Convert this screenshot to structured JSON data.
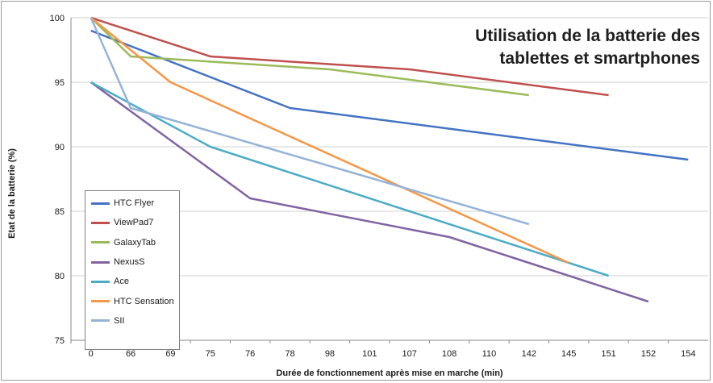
{
  "chart_data": {
    "type": "line",
    "title_lines": [
      "Utilisation de la batterie des",
      "tablettes et smartphones"
    ],
    "xlabel": "Durée de fonctionnement après mise en marche (min)",
    "ylabel": "Etat de la batterie (%)",
    "categories": [
      "0",
      "66",
      "69",
      "75",
      "76",
      "78",
      "98",
      "101",
      "107",
      "108",
      "110",
      "142",
      "145",
      "151",
      "152",
      "154"
    ],
    "ylim": [
      75,
      100
    ],
    "yticks": [
      "75",
      "80",
      "85",
      "90",
      "95",
      "100"
    ],
    "grid": "horizontal",
    "legend_position": "left-bottom",
    "series": [
      {
        "name": "HTC Flyer",
        "color": "#4472c4",
        "points": [
          [
            0,
            99
          ],
          [
            5,
            93
          ],
          [
            15,
            89
          ]
        ]
      },
      {
        "name": "ViewPad7",
        "color": "#c0504d",
        "points": [
          [
            0,
            100
          ],
          [
            3,
            97
          ],
          [
            8,
            96
          ],
          [
            13,
            94
          ]
        ]
      },
      {
        "name": "GalaxyTab",
        "color": "#9bbb59",
        "points": [
          [
            0,
            100
          ],
          [
            1,
            97
          ],
          [
            6,
            96
          ],
          [
            11,
            94
          ]
        ]
      },
      {
        "name": "NexusS",
        "color": "#8064a2",
        "points": [
          [
            0,
            95
          ],
          [
            4,
            86
          ],
          [
            9,
            83
          ],
          [
            14,
            78
          ]
        ]
      },
      {
        "name": "Ace",
        "color": "#4bacc6",
        "points": [
          [
            0,
            95
          ],
          [
            3,
            90
          ],
          [
            8,
            85
          ],
          [
            13,
            80
          ]
        ]
      },
      {
        "name": "HTC Sensation",
        "color": "#f79646",
        "points": [
          [
            0,
            100
          ],
          [
            2,
            95
          ],
          [
            12,
            81
          ]
        ]
      },
      {
        "name": "SII",
        "color": "#95b3d7",
        "points": [
          [
            0,
            100
          ],
          [
            1,
            93
          ],
          [
            11,
            84
          ]
        ]
      }
    ]
  }
}
